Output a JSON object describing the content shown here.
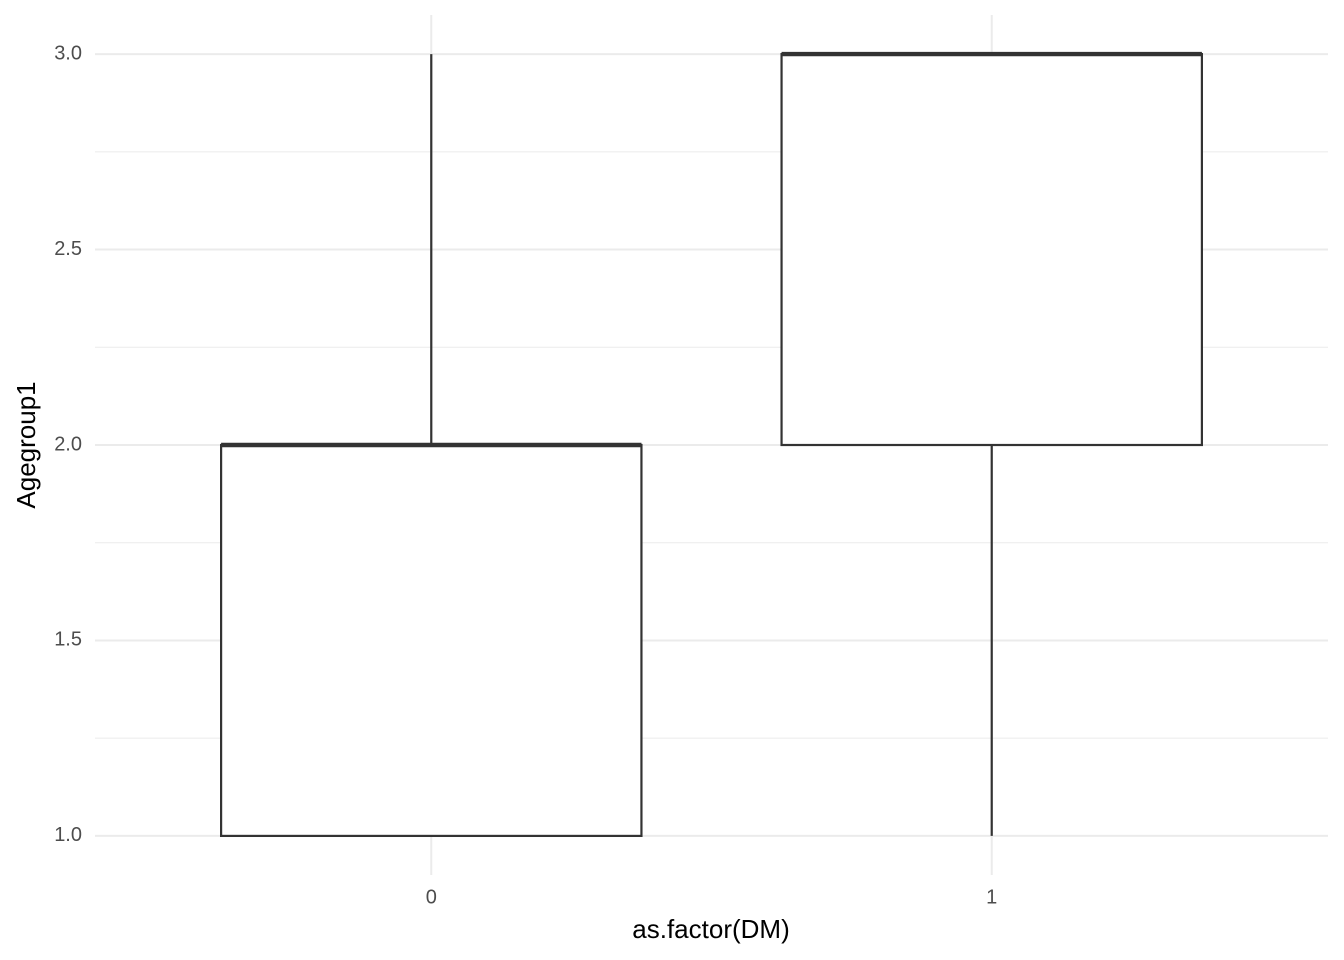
{
  "chart_data": {
    "type": "boxplot",
    "x_label": "as.factor(DM)",
    "y_label": "Agegroup1",
    "categories": [
      "0",
      "1"
    ],
    "boxes": [
      {
        "min": 1,
        "q1": 1,
        "median": 2,
        "q3": 2,
        "max": 3
      },
      {
        "min": 1,
        "q1": 2,
        "median": 3,
        "q3": 3,
        "max": 3
      }
    ],
    "color": "#333333",
    "fill": "#ffffff",
    "ylim": [
      0.9,
      3.1
    ],
    "yticks": [
      {
        "value": 1,
        "label": "1.0"
      },
      {
        "value": 1.5,
        "label": "1.5"
      },
      {
        "value": 2,
        "label": "2.0"
      },
      {
        "value": 2.5,
        "label": "2.5"
      },
      {
        "value": 3,
        "label": "3.0"
      }
    ],
    "y_minor_ticks": [
      1.25,
      1.75,
      2.25,
      2.75
    ],
    "grid": true
  }
}
